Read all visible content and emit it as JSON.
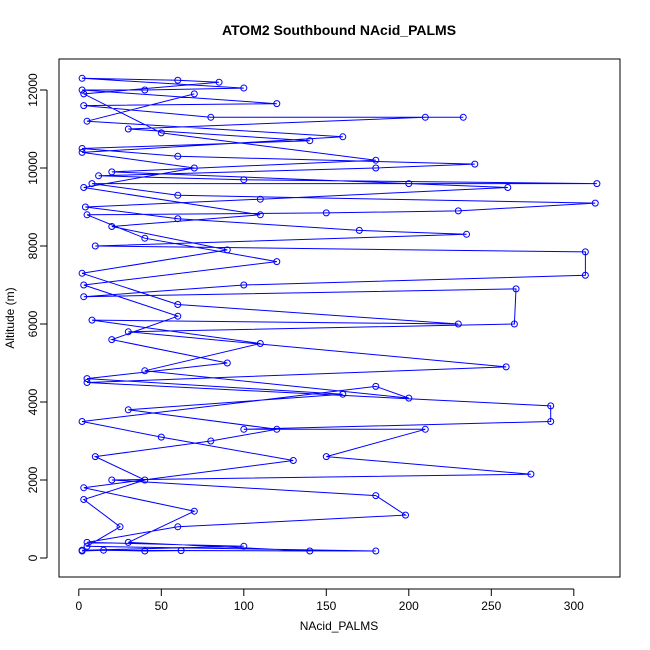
{
  "chart_data": {
    "type": "line",
    "title": "ATOM2 Southbound NAcid_PALMS",
    "x_label": "NAcid_PALMS",
    "y_label": "Altitude (m)",
    "xlim": [
      -12,
      328
    ],
    "ylim": [
      -487,
      12795
    ],
    "xticks": [
      0,
      50,
      100,
      150,
      200,
      250,
      300
    ],
    "yticks": [
      0,
      2000,
      4000,
      6000,
      8000,
      10000,
      12000
    ],
    "series": [
      {
        "color": "#0000ff",
        "x": [
          2,
          15,
          40,
          62,
          180,
          5,
          25,
          3,
          40,
          10,
          80,
          120,
          30,
          160,
          5,
          90,
          20,
          60,
          3,
          120,
          40,
          5,
          150,
          230,
          313,
          60,
          8,
          200,
          314,
          100,
          12,
          180,
          240,
          60,
          2,
          140,
          30,
          210,
          233,
          80,
          3,
          120,
          2,
          40,
          100,
          2,
          60,
          85,
          3,
          50,
          180,
          20,
          260,
          110,
          4,
          60,
          170,
          235,
          10,
          307,
          307,
          100,
          3,
          265,
          264,
          30,
          259,
          5,
          286,
          286,
          100,
          210,
          150,
          274,
          20,
          180,
          198,
          60,
          5,
          100,
          2,
          140,
          30,
          70,
          3,
          130,
          50,
          2,
          180,
          200,
          40,
          110,
          8,
          230,
          60,
          2,
          90,
          20,
          110,
          3,
          70,
          2,
          160,
          5,
          70
        ],
        "values": [
          180,
          200,
          180,
          190,
          180,
          300,
          800,
          1500,
          2000,
          2600,
          3000,
          3300,
          3800,
          4200,
          4600,
          5000,
          5600,
          6200,
          7000,
          7600,
          8200,
          8800,
          8850,
          8900,
          9100,
          9300,
          9600,
          9600,
          9600,
          9700,
          9800,
          10000,
          10100,
          10300,
          10500,
          10700,
          11000,
          11300,
          11300,
          11300,
          11600,
          11650,
          12000,
          12000,
          12050,
          12300,
          12250,
          12200,
          11900,
          10900,
          10200,
          9900,
          9500,
          9200,
          9000,
          8700,
          8400,
          8300,
          8000,
          7850,
          7250,
          7000,
          6700,
          6900,
          6000,
          5800,
          4900,
          4500,
          3900,
          3500,
          3300,
          3300,
          2600,
          2150,
          2000,
          1600,
          1100,
          800,
          400,
          300,
          200,
          180,
          400,
          1200,
          1800,
          2500,
          3100,
          3500,
          4400,
          4100,
          4800,
          5500,
          6100,
          6000,
          6500,
          7300,
          7900,
          8500,
          8800,
          9500,
          10000,
          10400,
          10800,
          11200,
          11900
        ]
      }
    ]
  }
}
